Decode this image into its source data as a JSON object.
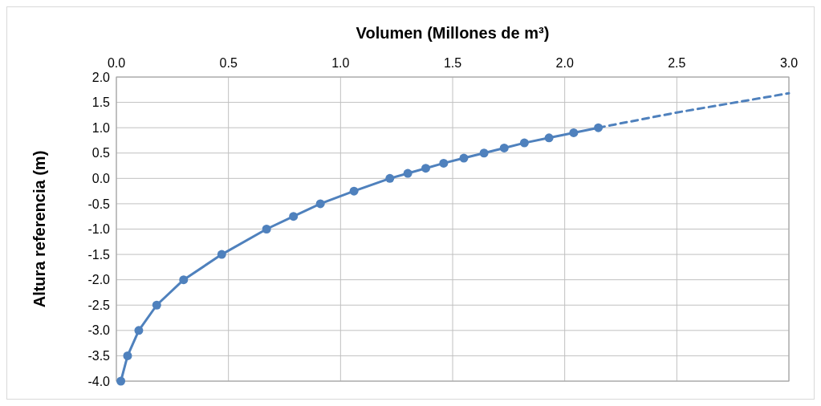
{
  "chart_data": {
    "type": "line",
    "xlabel": "Volumen (Millones de m³)",
    "ylabel": "Altura  referencia (m)",
    "xlim": [
      0,
      3
    ],
    "xticks": [
      {
        "value": 0,
        "label": "0.0"
      },
      {
        "value": 0.5,
        "label": "0.5"
      },
      {
        "value": 1,
        "label": "1.0"
      },
      {
        "value": 1.5,
        "label": "1.5"
      },
      {
        "value": 2,
        "label": "2.0"
      },
      {
        "value": 2.5,
        "label": "2.5"
      },
      {
        "value": 3,
        "label": "3.0"
      }
    ],
    "ylim": [
      -4,
      2
    ],
    "yticks": [
      {
        "value": -4,
        "label": "-4.0"
      },
      {
        "value": -3.5,
        "label": "-3.5"
      },
      {
        "value": -3,
        "label": "-3.0"
      },
      {
        "value": -2.5,
        "label": "-2.5"
      },
      {
        "value": -2,
        "label": "-2.0"
      },
      {
        "value": -1.5,
        "label": "-1.5"
      },
      {
        "value": -1,
        "label": "-1.0"
      },
      {
        "value": -0.5,
        "label": "-0.5"
      },
      {
        "value": 0,
        "label": "0.0"
      },
      {
        "value": 0.5,
        "label": "0.5"
      },
      {
        "value": 1,
        "label": "1.0"
      },
      {
        "value": 1.5,
        "label": "1.5"
      },
      {
        "value": 2,
        "label": "2.0"
      }
    ],
    "grid": true,
    "series": [
      {
        "color": "#4f81bd",
        "marker": "circle",
        "line_style": "solid",
        "x": [
          0.02,
          0.05,
          0.1,
          0.18,
          0.3,
          0.47,
          0.67,
          0.79,
          0.91,
          1.06,
          1.22,
          1.3,
          1.38,
          1.46,
          1.55,
          1.64,
          1.73,
          1.82,
          1.93,
          2.04,
          2.15
        ],
        "values": [
          -4,
          -3.5,
          -3,
          -2.5,
          -2,
          -1.5,
          -1,
          -0.75,
          -0.5,
          -0.25,
          0,
          0.1,
          0.2,
          0.3,
          0.4,
          0.5,
          0.6,
          0.7,
          0.8,
          0.9,
          1
        ]
      },
      {
        "color": "#4f81bd",
        "marker": "none",
        "line_style": "dashed",
        "x": [
          2.15,
          2.5,
          3
        ],
        "values": [
          1,
          1.3,
          1.68
        ]
      }
    ]
  }
}
